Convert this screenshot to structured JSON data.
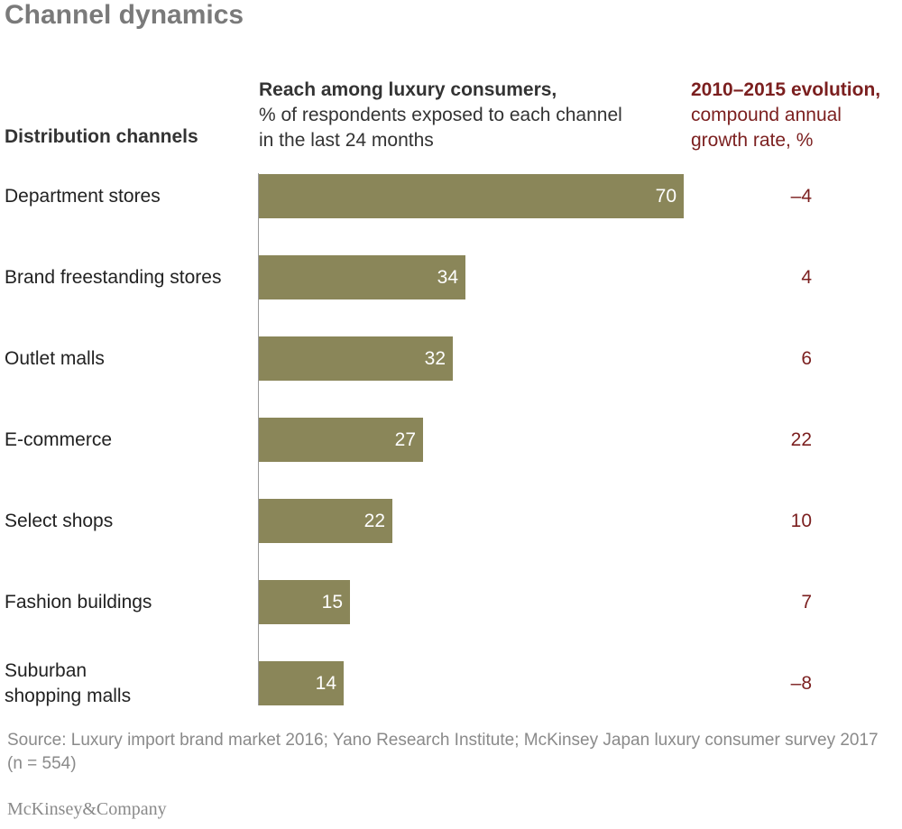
{
  "title": "Channel dynamics",
  "headers": {
    "categories": "Distribution channels",
    "reach_bold": "Reach among luxury consumers,",
    "reach_rest": "% of respondents exposed to each channel in the last 24 months",
    "cagr_bold": "2010–2015 evolution,",
    "cagr_rest": "compound annual growth rate, %"
  },
  "chart_data": {
    "type": "bar",
    "orientation": "horizontal",
    "categories": [
      "Department stores",
      "Brand freestanding stores",
      "Outlet malls",
      "E-commerce",
      "Select shops",
      "Fashion buildings",
      "Suburban shopping malls"
    ],
    "category_lines": [
      [
        "Department stores"
      ],
      [
        "Brand freestanding stores"
      ],
      [
        "Outlet malls"
      ],
      [
        "E-commerce"
      ],
      [
        "Select shops"
      ],
      [
        "Fashion buildings"
      ],
      [
        "Suburban",
        "shopping malls"
      ]
    ],
    "values": [
      70,
      34,
      32,
      27,
      22,
      15,
      14
    ],
    "cagr": [
      "–4",
      "4",
      "6",
      "22",
      "10",
      "7",
      "–8"
    ],
    "xlim": [
      0,
      70
    ],
    "bar_color": "#8a8659",
    "cagr_color": "#7b1f1f"
  },
  "source": "Source: Luxury import brand market 2016; Yano Research Institute; McKinsey Japan luxury consumer survey 2017 (n = 554)",
  "logo": "McKinsey&Company"
}
